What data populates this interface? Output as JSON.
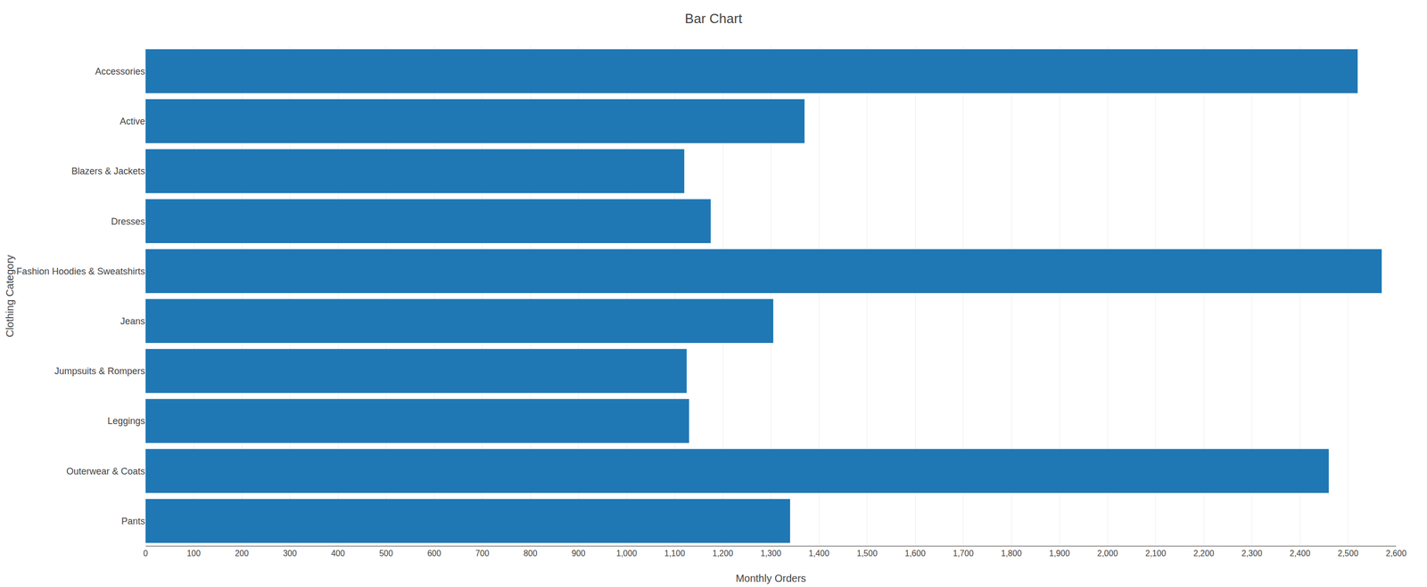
{
  "chart_data": {
    "type": "bar",
    "orientation": "horizontal",
    "title": "Bar Chart",
    "xlabel": "Monthly Orders",
    "ylabel": "Clothing Category",
    "categories": [
      "Accessories",
      "Active",
      "Blazers & Jackets",
      "Dresses",
      "Fashion Hoodies & Sweatshirts",
      "Jeans",
      "Jumpsuits & Rompers",
      "Leggings",
      "Outerwear & Coats",
      "Pants"
    ],
    "values": [
      2520,
      1370,
      1120,
      1175,
      2570,
      1305,
      1125,
      1130,
      2460,
      1340
    ],
    "xlim": [
      0,
      2600
    ],
    "xticks": [
      0,
      100,
      200,
      300,
      400,
      500,
      600,
      700,
      800,
      900,
      {
        "value": 1000,
        "label": "1,000"
      },
      {
        "value": 1100,
        "label": "1,100"
      },
      {
        "value": 1200,
        "label": "1,200"
      },
      {
        "value": 1300,
        "label": "1,300"
      },
      {
        "value": 1400,
        "label": "1,400"
      },
      {
        "value": 1500,
        "label": "1,500"
      },
      {
        "value": 1600,
        "label": "1,600"
      },
      {
        "value": 1700,
        "label": "1,700"
      },
      {
        "value": 1800,
        "label": "1,800"
      },
      {
        "value": 1900,
        "label": "1,900"
      },
      {
        "value": 2000,
        "label": "2,000"
      },
      {
        "value": 2100,
        "label": "2,100"
      },
      {
        "value": 2200,
        "label": "2,200"
      },
      {
        "value": 2300,
        "label": "2,300"
      },
      {
        "value": 2400,
        "label": "2,400"
      },
      {
        "value": 2500,
        "label": "2,500"
      },
      {
        "value": 2600,
        "label": "2,600"
      }
    ],
    "grid": true
  }
}
